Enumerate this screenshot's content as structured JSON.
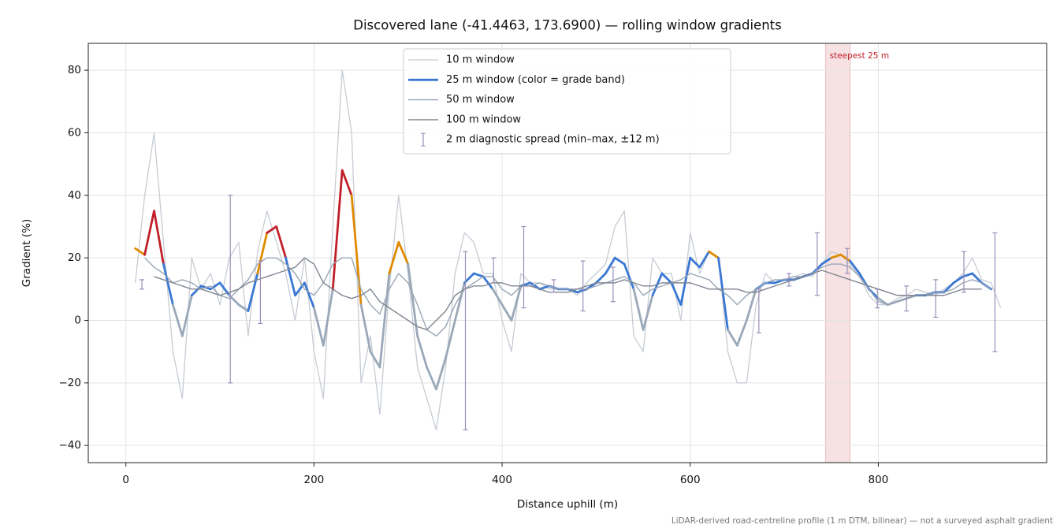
{
  "chart_data": {
    "type": "line",
    "title": "Discovered lane (-41.4463, 173.6900) — rolling window gradients",
    "x_label": "Distance uphill (m)",
    "y_label": "Gradient (%)",
    "footnote": "LiDAR-derived road-centreline profile (1 m DTM, bilinear) — not a surveyed asphalt gradient",
    "xlim": [
      -40,
      979
    ],
    "ylim": [
      -45.5,
      88.6
    ],
    "xticks": [
      0,
      200,
      400,
      600,
      800
    ],
    "yticks": [
      {
        "value": -40,
        "label": "−40"
      },
      {
        "value": -20,
        "label": "−20"
      },
      0,
      20,
      40,
      60,
      80
    ],
    "grid": true,
    "legend": "upper center",
    "x": [
      10,
      20,
      30,
      40,
      50,
      60,
      70,
      80,
      90,
      100,
      110,
      120,
      130,
      140,
      150,
      160,
      170,
      180,
      190,
      200,
      210,
      220,
      230,
      240,
      250,
      260,
      270,
      280,
      290,
      300,
      310,
      320,
      330,
      340,
      350,
      360,
      370,
      380,
      390,
      400,
      410,
      420,
      430,
      440,
      450,
      460,
      470,
      480,
      490,
      500,
      510,
      520,
      530,
      540,
      550,
      560,
      570,
      580,
      590,
      600,
      610,
      620,
      630,
      640,
      650,
      660,
      670,
      680,
      690,
      700,
      710,
      720,
      730,
      740,
      750,
      760,
      770,
      780,
      790,
      800,
      810,
      820,
      830,
      840,
      850,
      860,
      870,
      880,
      890,
      900,
      910,
      920,
      930
    ],
    "series": [
      {
        "name": "10 m window",
        "color": "#c6ccd4",
        "width": 1.3,
        "values": [
          12,
          40,
          60,
          25,
          -10,
          -25,
          20,
          10,
          15,
          5,
          20,
          25,
          -5,
          22,
          35,
          25,
          15,
          0,
          20,
          -10,
          -25,
          30,
          80,
          60,
          -20,
          -5,
          -30,
          10,
          40,
          15,
          -15,
          -25,
          -35,
          -15,
          15,
          28,
          25,
          15,
          15,
          0,
          -10,
          15,
          12,
          12,
          10,
          10,
          10,
          8,
          12,
          15,
          18,
          30,
          35,
          -5,
          -10,
          20,
          15,
          15,
          0,
          28,
          15,
          22,
          20,
          -10,
          -20,
          -20,
          5,
          15,
          12,
          13,
          14,
          15,
          14,
          18,
          22,
          21,
          18,
          14,
          8,
          5,
          5,
          7,
          8,
          10,
          9,
          8,
          10,
          12,
          15,
          20,
          13,
          12,
          4
        ]
      },
      {
        "name": "25 m window (color = grade band)",
        "color": "#3a78d4",
        "width": 2.8,
        "bands": [
          {
            "min": -100,
            "color": "#9aa8b8"
          },
          {
            "min": 8,
            "color": "#3a78d4"
          },
          {
            "min": 20,
            "color": "#e08a00"
          },
          {
            "min": 25,
            "color": "#c0202a"
          }
        ],
        "values": [
          23,
          21,
          35,
          18,
          5,
          -5,
          8,
          11,
          10,
          12,
          8,
          5,
          3,
          15,
          28,
          30,
          20,
          8,
          12,
          4,
          -8,
          10,
          48,
          40,
          5,
          -10,
          -15,
          15,
          25,
          18,
          -5,
          -15,
          -22,
          -12,
          0,
          12,
          15,
          14,
          10,
          5,
          0,
          11,
          12,
          10,
          11,
          10,
          10,
          9,
          10,
          12,
          15,
          20,
          18,
          10,
          -3,
          8,
          15,
          12,
          5,
          20,
          17,
          22,
          20,
          -3,
          -8,
          0,
          10,
          12,
          12,
          13,
          13,
          14,
          15,
          18,
          20,
          21,
          19,
          15,
          10,
          7,
          5,
          6,
          7,
          8,
          8,
          9,
          9,
          12,
          14,
          15,
          12,
          10,
          null
        ]
      },
      {
        "name": "50 m window",
        "color": "#9aa6b5",
        "width": 1.4,
        "values": [
          null,
          20,
          17,
          15,
          12,
          13,
          12,
          10,
          11,
          8,
          7,
          10,
          13,
          18,
          20,
          20,
          18,
          15,
          10,
          8,
          12,
          18,
          20,
          20,
          10,
          5,
          2,
          10,
          15,
          12,
          5,
          -3,
          -5,
          -2,
          5,
          10,
          12,
          14,
          14,
          10,
          8,
          11,
          11,
          12,
          11,
          10,
          10,
          10,
          10,
          11,
          12,
          13,
          14,
          12,
          8,
          10,
          11,
          12,
          13,
          15,
          14,
          13,
          10,
          8,
          5,
          8,
          10,
          12,
          13,
          13,
          14,
          14,
          15,
          17,
          18,
          18,
          17,
          14,
          10,
          6,
          5,
          6,
          7,
          8,
          8,
          9,
          9,
          10,
          12,
          13,
          12,
          10,
          null
        ]
      },
      {
        "name": "100 m window",
        "color": "#7f8590",
        "width": 1.4,
        "values": [
          null,
          null,
          14,
          13,
          12,
          11,
          10,
          10,
          9,
          8,
          9,
          10,
          12,
          13,
          14,
          15,
          16,
          17,
          20,
          18,
          12,
          10,
          8,
          7,
          8,
          10,
          6,
          4,
          2,
          0,
          -2,
          -3,
          0,
          3,
          8,
          10,
          11,
          11,
          12,
          12,
          11,
          11,
          11,
          10,
          9,
          9,
          9,
          10,
          11,
          12,
          12,
          12,
          13,
          12,
          11,
          11,
          12,
          12,
          12,
          12,
          11,
          10,
          10,
          10,
          10,
          9,
          9,
          10,
          11,
          12,
          13,
          14,
          15,
          16,
          15,
          14,
          13,
          12,
          11,
          10,
          9,
          8,
          8,
          8,
          8,
          8,
          8,
          9,
          10,
          10,
          10,
          null,
          null
        ]
      }
    ],
    "spread": {
      "name": "2 m diagnostic spread (min–max, ±12 m)",
      "color": "#9a8fb8",
      "x": [
        17,
        111,
        143,
        361,
        391,
        423,
        455,
        486,
        518,
        673,
        705,
        735,
        767,
        799,
        830,
        861,
        891,
        924
      ],
      "lo": [
        10,
        -20,
        -1,
        -35,
        12,
        4,
        9,
        3,
        6,
        -4,
        11,
        8,
        15,
        4,
        3,
        1,
        9,
        -10
      ],
      "hi": [
        13,
        40,
        19,
        22,
        20,
        30,
        13,
        19,
        17,
        10,
        15,
        28,
        23,
        10,
        11,
        13,
        22,
        28
      ]
    },
    "highlight": {
      "label": "steepest 25 m",
      "xlim": [
        744,
        770
      ],
      "color": "#c0202a"
    }
  }
}
